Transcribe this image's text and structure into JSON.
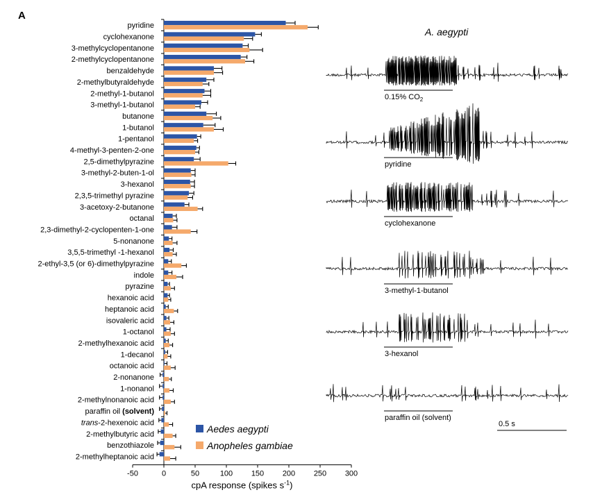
{
  "panel_label": "A",
  "species_title": "A. aegypti",
  "chart_data": {
    "type": "bar",
    "orientation": "horizontal",
    "xlabel": "cpA response (spikes s",
    "xlabel_sup": "-1",
    "xlabel_end": ")",
    "xlim": [
      -50,
      300
    ],
    "xticks": [
      "-50",
      "0",
      "50",
      "100",
      "150",
      "200",
      "250",
      "300"
    ],
    "legend_position": "bottom-right",
    "colors": {
      "Aedes aegypti": "#2c55a6",
      "Anopheles gambiae": "#f5a96b"
    },
    "categories": [
      "pyridine",
      "cyclohexanone",
      "3-methylcyclopentanone",
      "2-methylcyclopentanone",
      "benzaldehyde",
      "2-methylbutyraldehyde",
      "2-methyl-1-butanol",
      "3-methyl-1-butanol",
      "butanone",
      "1-butanol",
      "1-pentanol",
      "4-methyl-3-penten-2-one",
      "2,5-dimethylpyrazine",
      "3-methyl-2-buten-1-ol",
      "3-hexanol",
      "2,3,5-trimethyl pyrazine",
      "3-acetoxy-2-butanone",
      "octanal",
      "2,3-dimethyl-2-cyclopenten-1-one",
      "5-nonanone",
      "3,5,5-trimethyl -1-hexanol",
      "2-ethyl-3,5 (or 6)-dimethylpyrazine",
      "indole",
      "pyrazine",
      "hexanoic acid",
      "heptanoic acid",
      "isovaleric acid",
      "1-octanol",
      "2-methylhexanoic acid",
      "1-decanol",
      "octanoic acid",
      "2-nonanone",
      "1-nonanol",
      "2-methylnonanoic acid",
      "paraffin oil (solvent)",
      "trans-2-hexenoic acid",
      "2-methylbutyric acid",
      "benzothiazole",
      "2-methylheptanoic acid"
    ],
    "series": [
      {
        "name": "Aedes aegypti",
        "values": [
          195,
          146,
          126,
          123,
          80,
          68,
          65,
          60,
          68,
          63,
          53,
          52,
          48,
          43,
          42,
          40,
          33,
          14,
          13,
          8,
          9,
          7,
          7,
          6,
          6,
          3,
          4,
          4,
          3,
          2,
          1,
          -2,
          -2,
          -2,
          -3,
          -4,
          -5,
          -6,
          -7
        ],
        "errors": [
          15,
          10,
          9,
          10,
          13,
          12,
          10,
          10,
          16,
          19,
          6,
          5,
          10,
          7,
          7,
          8,
          7,
          6,
          8,
          5,
          6,
          5,
          6,
          3,
          3,
          4,
          4,
          6,
          4,
          4,
          4,
          4,
          5,
          5,
          4,
          4,
          4,
          4,
          4
        ]
      },
      {
        "name": "Anopheles gambiae",
        "values": [
          230,
          128,
          137,
          130,
          80,
          62,
          62,
          50,
          78,
          80,
          48,
          50,
          103,
          44,
          43,
          38,
          54,
          15,
          43,
          14,
          14,
          28,
          20,
          11,
          7,
          16,
          10,
          11,
          9,
          6,
          11,
          8,
          9,
          11,
          2,
          8,
          14,
          17,
          10
        ],
        "errors": [
          17,
          14,
          21,
          14,
          14,
          10,
          13,
          8,
          13,
          15,
          6,
          6,
          12,
          6,
          6,
          8,
          8,
          6,
          10,
          7,
          6,
          8,
          10,
          6,
          4,
          6,
          6,
          6,
          5,
          5,
          7,
          4,
          6,
          6,
          3,
          6,
          5,
          10,
          9
        ]
      }
    ]
  },
  "traces": [
    {
      "label": "0.15% CO",
      "sub": "2"
    },
    {
      "label": "pyridine",
      "sub": ""
    },
    {
      "label": "cyclohexanone",
      "sub": ""
    },
    {
      "label": "3-methyl-1-butanol",
      "sub": ""
    },
    {
      "label": "3-hexanol",
      "sub": ""
    },
    {
      "label": "paraffin oil (solvent)",
      "sub": ""
    }
  ],
  "scale_bar_label": "0.5 s"
}
